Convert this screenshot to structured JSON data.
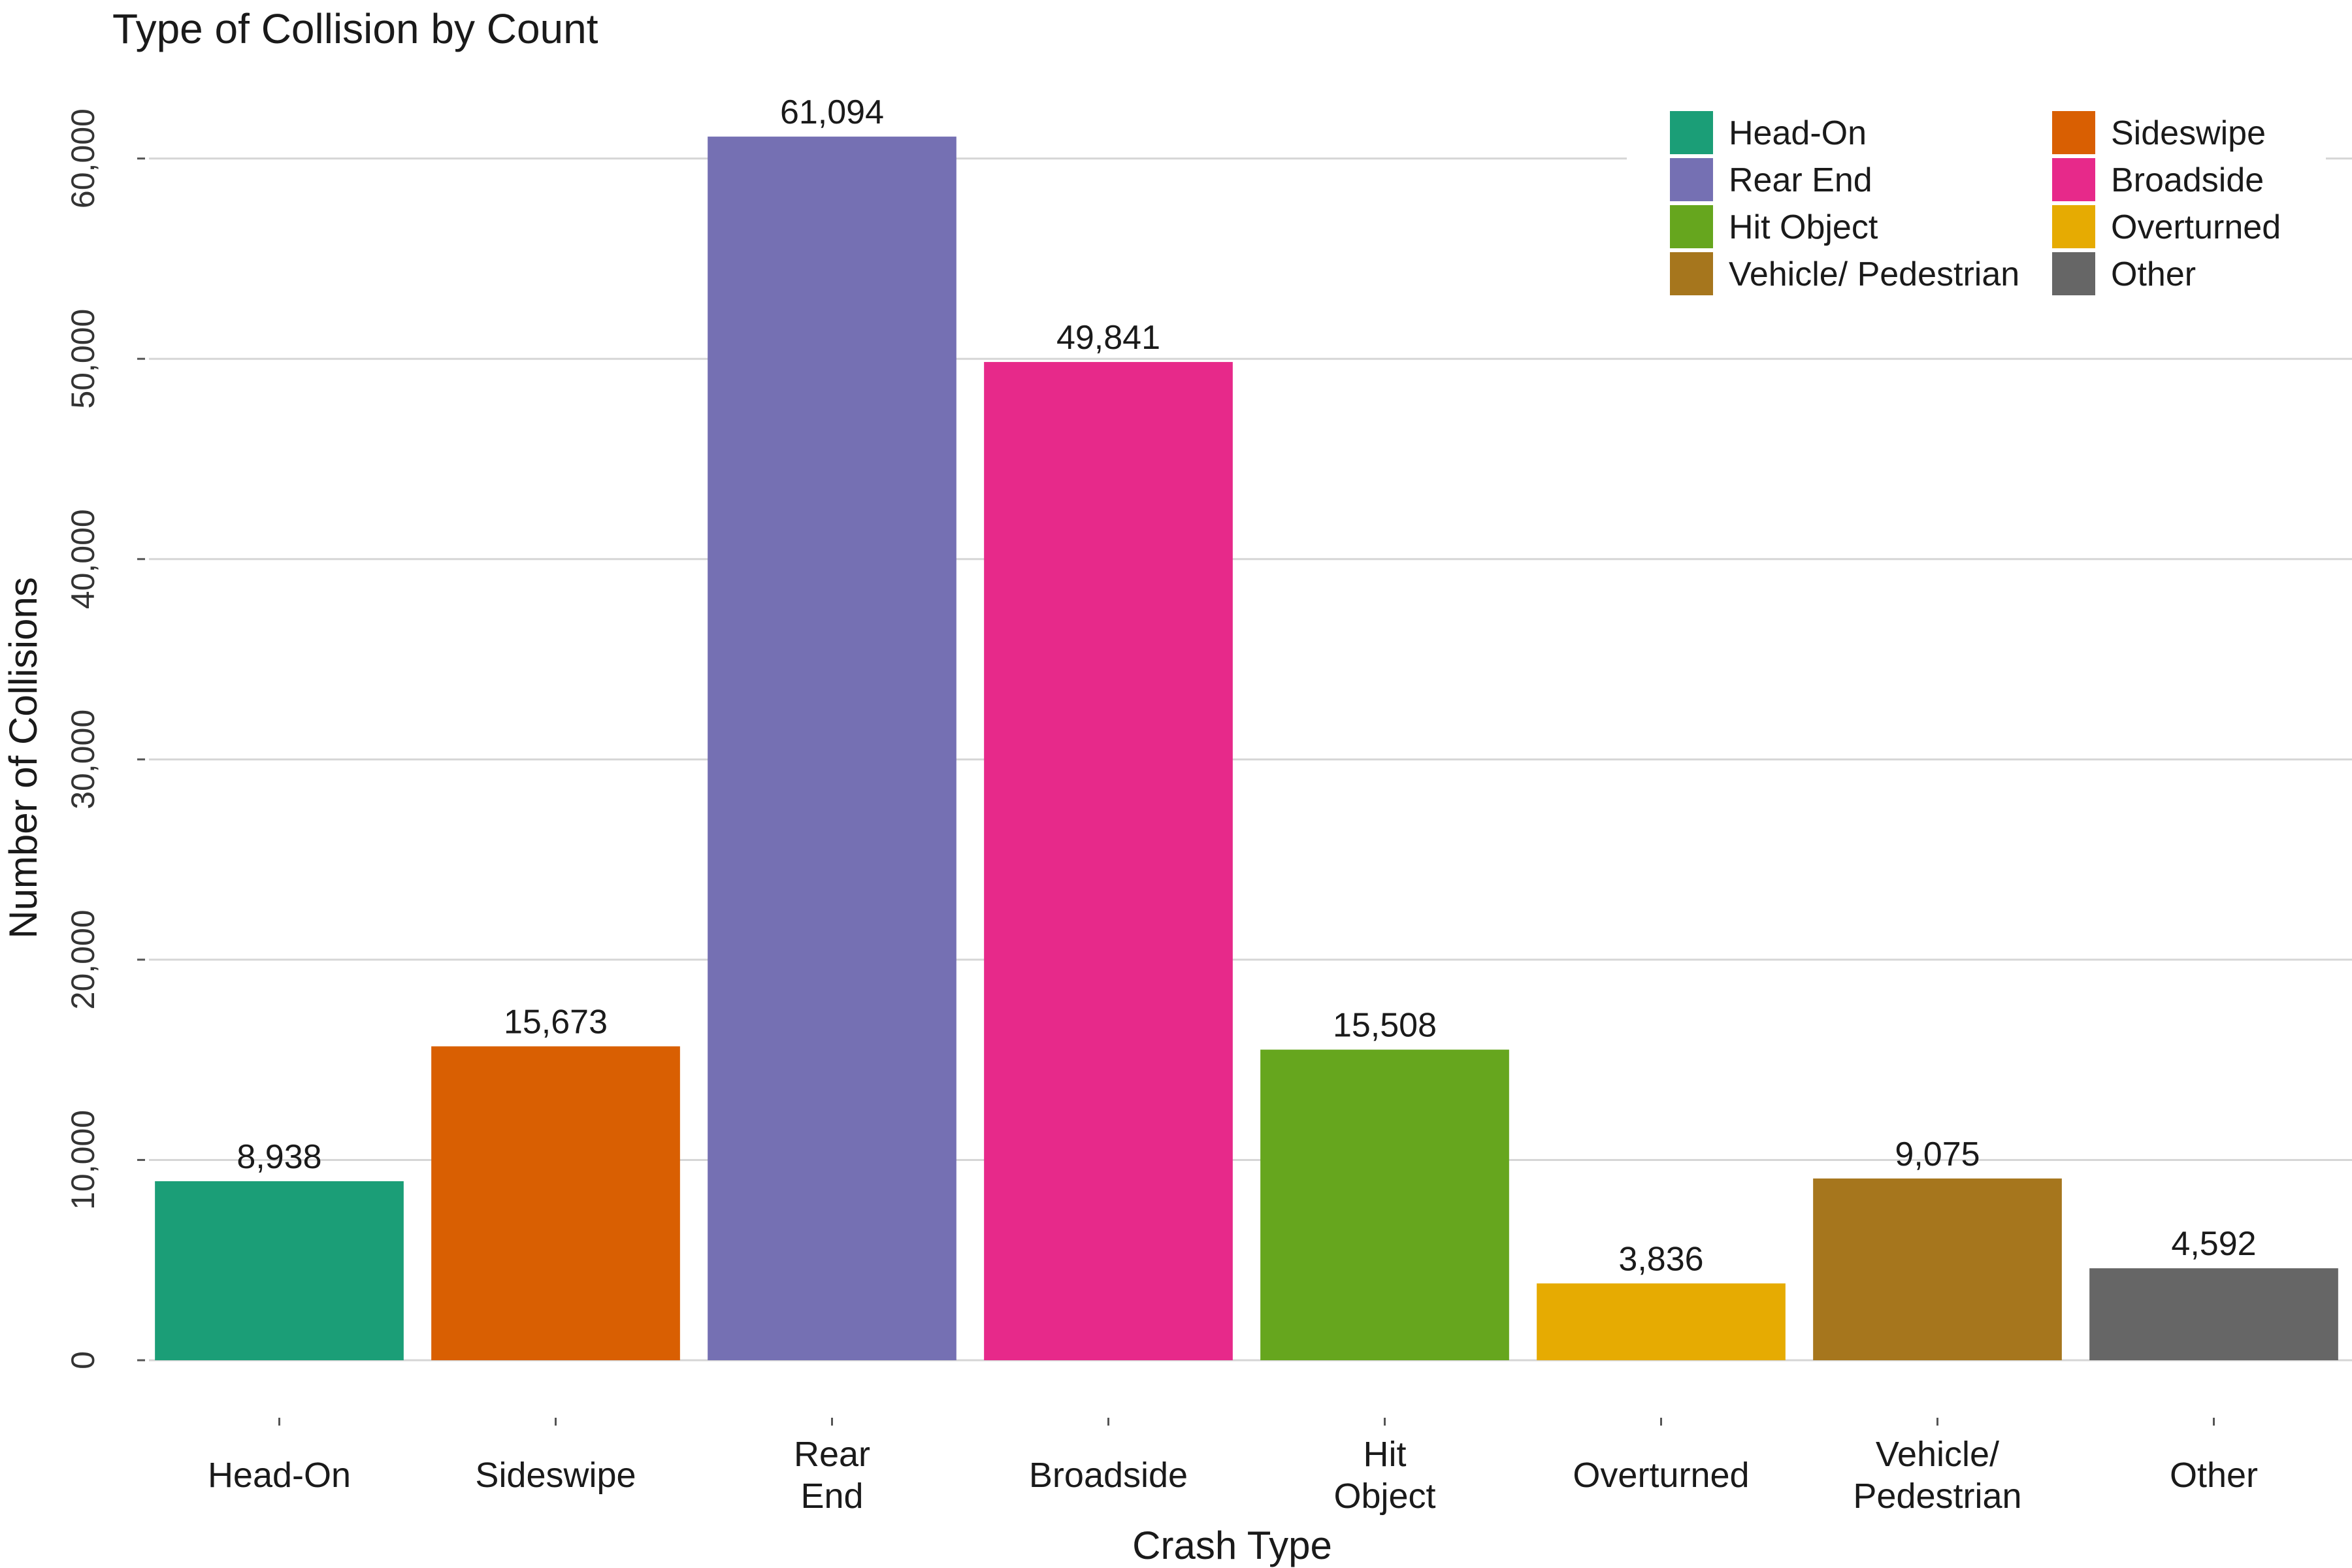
{
  "chart_data": {
    "type": "bar",
    "title": "Type of Collision by Count",
    "xlabel": "Crash Type",
    "ylabel": "Number of Collisions",
    "categories": [
      "Head-On",
      "Sideswipe",
      "Rear\nEnd",
      "Broadside",
      "Hit\nObject",
      "Overturned",
      "Vehicle/\nPedestrian",
      "Other"
    ],
    "values": [
      8938,
      15673,
      61094,
      49841,
      15508,
      3836,
      9075,
      4592
    ],
    "data_labels": [
      "8,938",
      "15,673",
      "61,094",
      "49,841",
      "15,508",
      "3,836",
      "9,075",
      "4,592"
    ],
    "colors": [
      "#1b9e77",
      "#d95f02",
      "#7570b3",
      "#e7298a",
      "#66a61e",
      "#e6ab02",
      "#a6761d",
      "#666666"
    ],
    "ylim": [
      0,
      64000
    ],
    "yticks": [
      0,
      10000,
      20000,
      30000,
      40000,
      50000,
      60000
    ],
    "ytick_labels": [
      "0",
      "10,000",
      "20,000",
      "30,000",
      "40,000",
      "50,000",
      "60,000"
    ],
    "grid": "horizontal",
    "legend": {
      "placement": "top-right",
      "columns": 2,
      "entries": [
        "Head-On",
        "Sideswipe",
        "Rear End",
        "Broadside",
        "Hit Object",
        "Overturned",
        "Vehicle/ Pedestrian",
        "Other"
      ]
    }
  }
}
